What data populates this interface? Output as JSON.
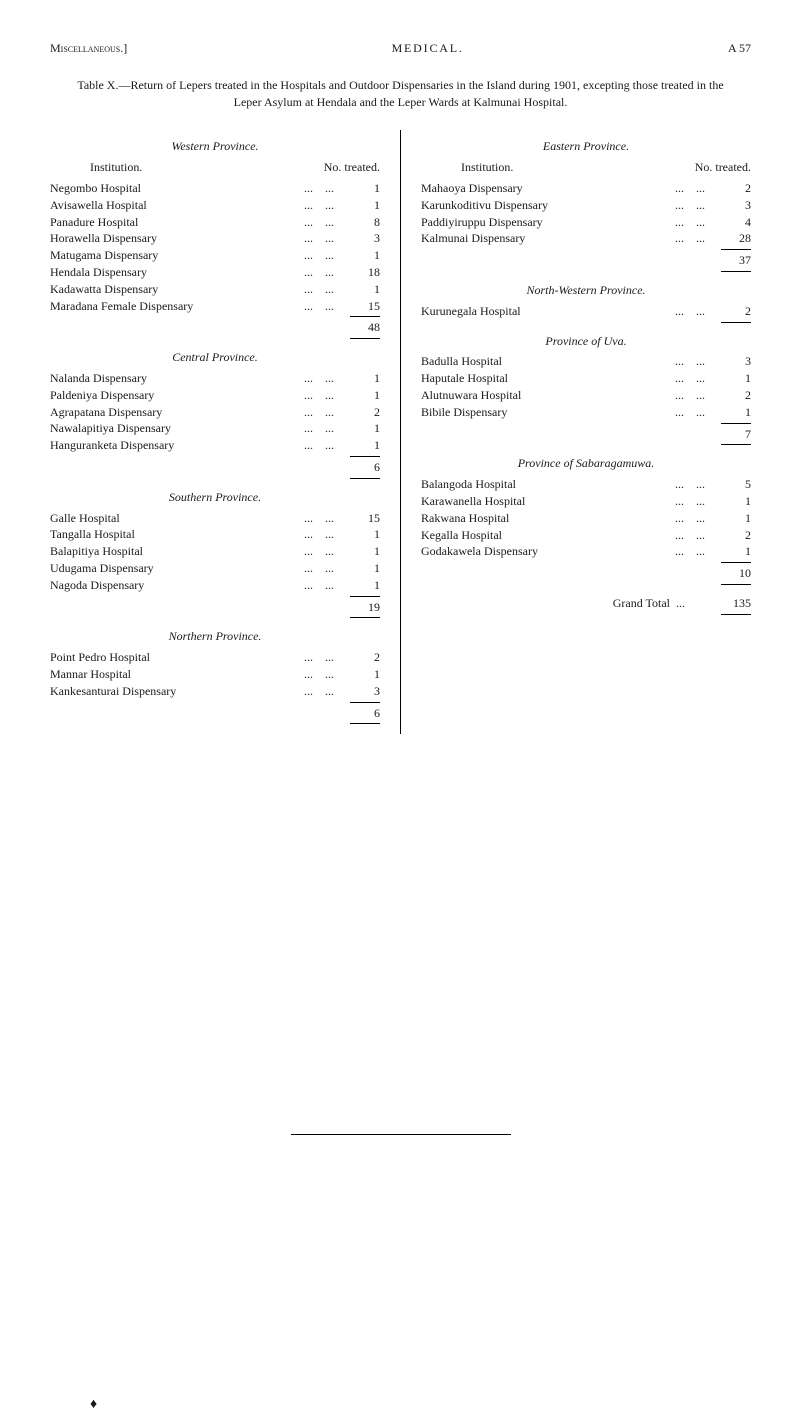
{
  "header": {
    "left": "Miscellaneous.]",
    "center": "MEDICAL.",
    "right": "A 57"
  },
  "title": "Table X.—Return of Lepers treated in the Hospitals and Outdoor Dispensaries in the Island during 1901, excepting those treated in the Leper Asylum at Hendala and the Leper Wards at Kalmunai Hospital.",
  "column_headers": {
    "institution": "Institution.",
    "treated": "No. treated."
  },
  "left_column": {
    "provinces": [
      {
        "name": "Western Province.",
        "rows": [
          {
            "label": "Negombo Hospital",
            "value": "1"
          },
          {
            "label": "Avisawella Hospital",
            "value": "1"
          },
          {
            "label": "Panadure Hospital",
            "value": "8"
          },
          {
            "label": "Horawella Dispensary",
            "value": "3"
          },
          {
            "label": "Matugama Dispensary",
            "value": "1"
          },
          {
            "label": "Hendala Dispensary",
            "value": "18"
          },
          {
            "label": "Kadawatta Dispensary",
            "value": "1"
          },
          {
            "label": "Maradana Female Dispensary",
            "value": "15"
          }
        ],
        "subtotal": "48"
      },
      {
        "name": "Central Province.",
        "rows": [
          {
            "label": "Nalanda Dispensary",
            "value": "1"
          },
          {
            "label": "Paldeniya Dispensary",
            "value": "1"
          },
          {
            "label": "Agrapatana Dispensary",
            "value": "2"
          },
          {
            "label": "Nawalapitiya Dispensary",
            "value": "1"
          },
          {
            "label": "Hanguranketa Dispensary",
            "value": "1"
          }
        ],
        "subtotal": "6"
      },
      {
        "name": "Southern Province.",
        "rows": [
          {
            "label": "Galle Hospital",
            "value": "15"
          },
          {
            "label": "Tangalla Hospital",
            "value": "1"
          },
          {
            "label": "Balapitiya Hospital",
            "value": "1"
          },
          {
            "label": "Udugama Dispensary",
            "value": "1"
          },
          {
            "label": "Nagoda Dispensary",
            "value": "1"
          }
        ],
        "subtotal": "19"
      },
      {
        "name": "Northern Province.",
        "rows": [
          {
            "label": "Point Pedro Hospital",
            "value": "2"
          },
          {
            "label": "Mannar Hospital",
            "value": "1"
          },
          {
            "label": "Kankesanturai Dispensary",
            "value": "3"
          }
        ],
        "subtotal": "6"
      }
    ]
  },
  "right_column": {
    "provinces": [
      {
        "name": "Eastern Province.",
        "rows": [
          {
            "label": "Mahaoya Dispensary",
            "value": "2"
          },
          {
            "label": "Karunkoditivu Dispensary",
            "value": "3"
          },
          {
            "label": "Paddiyiruppu Dispensary",
            "value": "4"
          },
          {
            "label": "Kalmunai Dispensary",
            "value": "28"
          }
        ],
        "subtotal": "37"
      },
      {
        "name": "North-Western Province.",
        "rows": [
          {
            "label": "Kurunegala Hospital",
            "value": "2"
          }
        ],
        "subtotal": ""
      },
      {
        "name": "Province of Uva.",
        "rows": [
          {
            "label": "Badulla Hospital",
            "value": "3"
          },
          {
            "label": "Haputale Hospital",
            "value": "1"
          },
          {
            "label": "Alutnuwara Hospital",
            "value": "2"
          },
          {
            "label": "Bibile Dispensary",
            "value": "1"
          }
        ],
        "subtotal": "7"
      },
      {
        "name": "Province of Sabaragamuwa.",
        "rows": [
          {
            "label": "Balangoda Hospital",
            "value": "5"
          },
          {
            "label": "Karawanella Hospital",
            "value": "1"
          },
          {
            "label": "Rakwana Hospital",
            "value": "1"
          },
          {
            "label": "Kegalla Hospital",
            "value": "2"
          },
          {
            "label": "Godakawela Dispensary",
            "value": "1"
          }
        ],
        "subtotal": "10"
      }
    ],
    "grand_total_label": "Grand Total",
    "grand_total_value": "135"
  }
}
